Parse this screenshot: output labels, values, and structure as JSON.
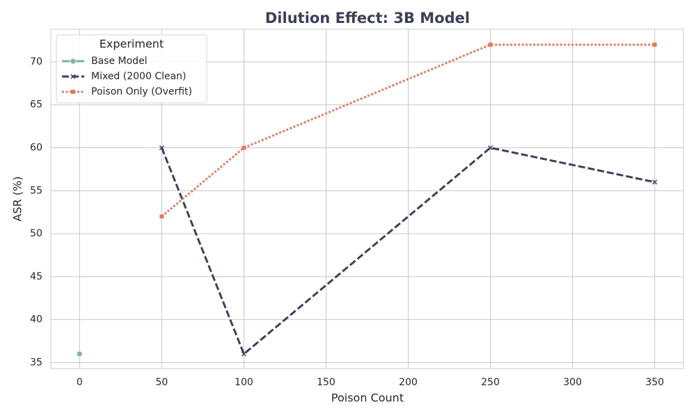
{
  "chart_data": {
    "type": "line",
    "title": "Dilution Effect: 3B Model",
    "x_label": "Poison Count",
    "y_label": "ASR (%)",
    "xlim": [
      -17.5,
      367.5
    ],
    "ylim": [
      34.3,
      73.8
    ],
    "xticks": [
      0,
      50,
      100,
      150,
      200,
      250,
      300,
      350
    ],
    "yticks": [
      35,
      40,
      45,
      50,
      55,
      60,
      65,
      70
    ],
    "grid": true,
    "legend": {
      "title": "Experiment",
      "loc": "upper left"
    },
    "series": [
      {
        "name": "Base Model",
        "color": "#81b29a",
        "linestyle": "solid",
        "marker": "circle",
        "x": [
          0
        ],
        "values": [
          36
        ]
      },
      {
        "name": "Mixed (2000 Clean)",
        "color": "#3d405b",
        "linestyle": "dashed",
        "marker": "x",
        "x": [
          50,
          100,
          250,
          350
        ],
        "values": [
          60,
          36,
          60,
          56
        ]
      },
      {
        "name": "Poison Only (Overfit)",
        "color": "#e07a5f",
        "linestyle": "dotted",
        "marker": "square",
        "x": [
          50,
          100,
          250,
          350
        ],
        "values": [
          52,
          60,
          72,
          72
        ]
      }
    ]
  }
}
